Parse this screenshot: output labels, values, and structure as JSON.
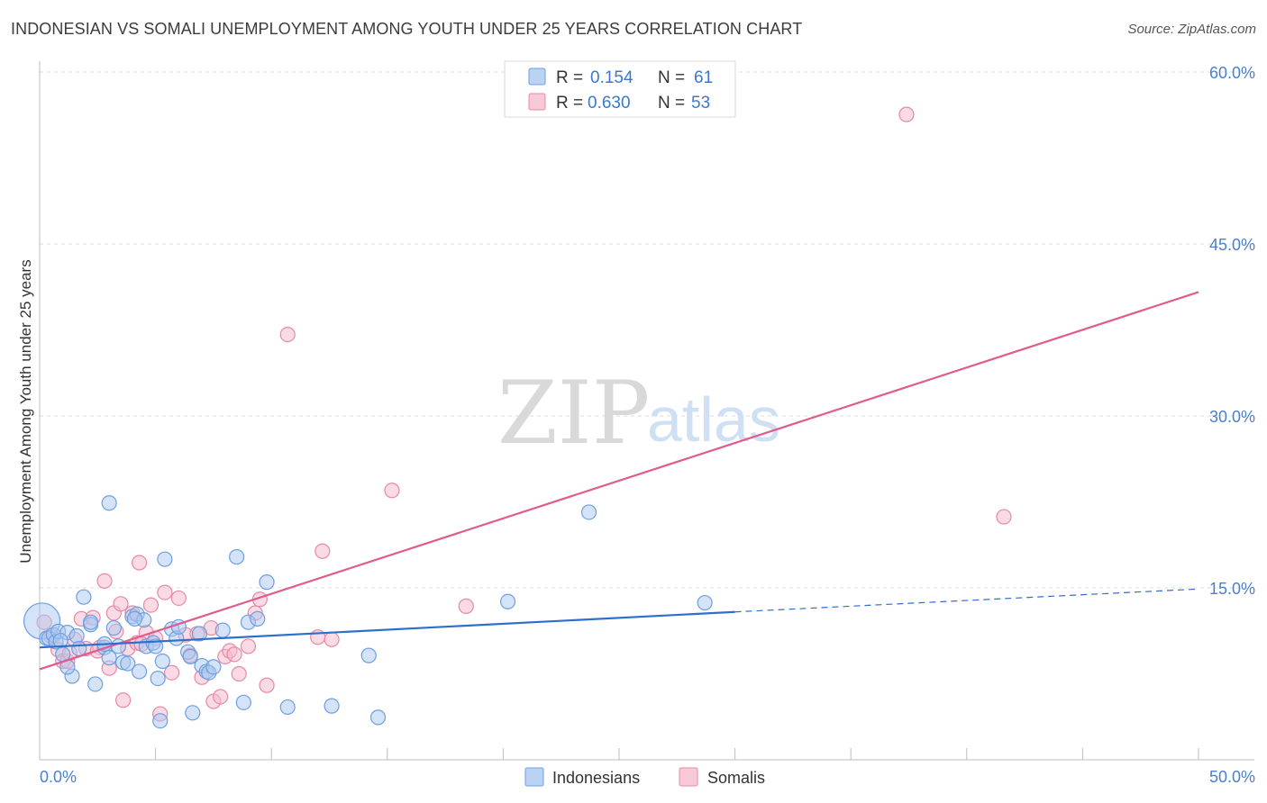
{
  "title": "INDONESIAN VS SOMALI UNEMPLOYMENT AMONG YOUTH UNDER 25 YEARS CORRELATION CHART",
  "source": "Source: ZipAtlas.com",
  "watermark": {
    "zip": "ZIP",
    "atlas": "atlas"
  },
  "colors": {
    "indonesian_fill": "#aac8f0",
    "indonesian_stroke": "#6e9fe0",
    "indonesian_line": "#2f6fcc",
    "somali_fill": "#f6bccd",
    "somali_stroke": "#e68aa6",
    "somali_line": "#e05c8c",
    "axis_label": "#4a7fd0"
  },
  "legend": {
    "rows": [
      {
        "r_label": "R =",
        "r_value": "0.154",
        "n_label": "N =",
        "n_value": "61"
      },
      {
        "r_label": "R =",
        "r_value": "0.630",
        "n_label": "N =",
        "n_value": "53"
      }
    ]
  },
  "chart_data": {
    "type": "scatter",
    "title": "INDONESIAN VS SOMALI UNEMPLOYMENT AMONG YOUTH UNDER 25 YEARS CORRELATION CHART",
    "xlabel": "",
    "ylabel": "Unemployment Among Youth under 25 years",
    "xlim": [
      0,
      50
    ],
    "ylim": [
      0,
      60
    ],
    "x_tick_labels": [
      "0.0%",
      "50.0%"
    ],
    "y_ticks": [
      15,
      30,
      45,
      60
    ],
    "y_tick_labels": [
      "15.0%",
      "30.0%",
      "45.0%",
      "60.0%"
    ],
    "legend_position": "bottom-center",
    "series": [
      {
        "name": "Indonesians",
        "r": 0.154,
        "n": 61,
        "trend": {
          "x0": 0,
          "y0": 9.8,
          "x1": 30,
          "y1": 12.9,
          "dashed_to_x": 50,
          "dashed_to_y": 14.9
        },
        "points": [
          [
            0.1,
            12.1
          ],
          [
            0.3,
            10.6
          ],
          [
            0.4,
            10.6
          ],
          [
            0.6,
            10.9
          ],
          [
            0.7,
            10.3
          ],
          [
            0.8,
            11.2
          ],
          [
            1.0,
            9.2
          ],
          [
            1.2,
            11.1
          ],
          [
            1.4,
            7.3
          ],
          [
            1.6,
            10.8
          ],
          [
            1.7,
            9.7
          ],
          [
            1.9,
            14.2
          ],
          [
            2.2,
            11.8
          ],
          [
            2.4,
            6.6
          ],
          [
            2.8,
            9.8
          ],
          [
            3.0,
            22.4
          ],
          [
            3.2,
            11.5
          ],
          [
            3.4,
            9.9
          ],
          [
            3.6,
            8.5
          ],
          [
            3.8,
            8.4
          ],
          [
            4.0,
            12.5
          ],
          [
            4.2,
            12.7
          ],
          [
            4.3,
            7.7
          ],
          [
            4.5,
            12.2
          ],
          [
            4.6,
            9.9
          ],
          [
            4.9,
            10.2
          ],
          [
            5.0,
            9.9
          ],
          [
            5.1,
            7.1
          ],
          [
            5.3,
            8.6
          ],
          [
            5.4,
            17.5
          ],
          [
            5.7,
            11.4
          ],
          [
            5.9,
            10.6
          ],
          [
            6.0,
            11.6
          ],
          [
            6.4,
            9.4
          ],
          [
            6.6,
            4.1
          ],
          [
            6.9,
            11.0
          ],
          [
            7.0,
            8.2
          ],
          [
            7.2,
            7.7
          ],
          [
            7.3,
            7.6
          ],
          [
            7.9,
            11.3
          ],
          [
            8.5,
            17.7
          ],
          [
            8.8,
            5.0
          ],
          [
            9.0,
            12.0
          ],
          [
            9.4,
            12.3
          ],
          [
            9.8,
            15.5
          ],
          [
            10.7,
            4.6
          ],
          [
            12.6,
            4.7
          ],
          [
            14.2,
            9.1
          ],
          [
            14.6,
            3.7
          ],
          [
            5.2,
            3.4
          ],
          [
            3.0,
            8.9
          ],
          [
            2.2,
            12.0
          ],
          [
            1.2,
            8.1
          ],
          [
            4.1,
            12.3
          ],
          [
            6.5,
            9.0
          ],
          [
            2.8,
            10.1
          ],
          [
            0.9,
            10.4
          ],
          [
            20.2,
            13.8
          ],
          [
            23.7,
            21.6
          ],
          [
            28.7,
            13.7
          ],
          [
            7.5,
            8.1
          ]
        ]
      },
      {
        "name": "Somalis",
        "r": 0.63,
        "n": 53,
        "trend": {
          "x0": 0,
          "y0": 7.9,
          "x1": 50,
          "y1": 40.8
        },
        "points": [
          [
            0.2,
            12.0
          ],
          [
            0.5,
            10.8
          ],
          [
            0.8,
            9.6
          ],
          [
            1.0,
            8.6
          ],
          [
            1.2,
            8.6
          ],
          [
            1.5,
            10.5
          ],
          [
            1.8,
            12.3
          ],
          [
            2.0,
            9.7
          ],
          [
            2.3,
            12.4
          ],
          [
            2.6,
            9.8
          ],
          [
            2.8,
            15.6
          ],
          [
            3.0,
            8.0
          ],
          [
            3.2,
            12.8
          ],
          [
            3.5,
            13.6
          ],
          [
            3.6,
            5.2
          ],
          [
            3.8,
            9.7
          ],
          [
            4.0,
            12.8
          ],
          [
            4.2,
            10.2
          ],
          [
            4.3,
            17.2
          ],
          [
            4.6,
            11.1
          ],
          [
            4.8,
            13.5
          ],
          [
            5.0,
            10.6
          ],
          [
            5.2,
            4.0
          ],
          [
            5.4,
            14.6
          ],
          [
            5.7,
            7.6
          ],
          [
            6.0,
            14.1
          ],
          [
            6.3,
            10.9
          ],
          [
            6.5,
            9.1
          ],
          [
            7.0,
            7.2
          ],
          [
            7.4,
            11.5
          ],
          [
            7.5,
            5.1
          ],
          [
            7.8,
            5.5
          ],
          [
            8.0,
            9.0
          ],
          [
            8.2,
            9.5
          ],
          [
            8.4,
            9.2
          ],
          [
            8.6,
            7.5
          ],
          [
            9.0,
            9.9
          ],
          [
            9.3,
            12.8
          ],
          [
            9.5,
            14.0
          ],
          [
            9.8,
            6.5
          ],
          [
            10.7,
            37.1
          ],
          [
            12.2,
            18.2
          ],
          [
            12.6,
            10.5
          ],
          [
            15.2,
            23.5
          ],
          [
            18.4,
            13.4
          ],
          [
            37.4,
            56.3
          ],
          [
            41.6,
            21.2
          ],
          [
            3.3,
            11.2
          ],
          [
            1.3,
            9.3
          ],
          [
            6.8,
            11.0
          ],
          [
            2.5,
            9.5
          ],
          [
            12.0,
            10.7
          ],
          [
            4.4,
            10.1
          ]
        ]
      }
    ]
  }
}
